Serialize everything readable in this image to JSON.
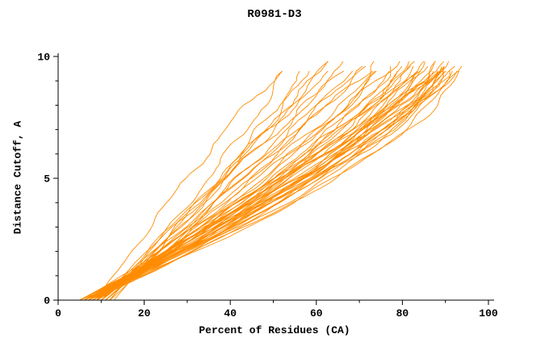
{
  "chart_data": {
    "type": "line",
    "title": "R0981-D3",
    "xlabel": "Percent of Residues (CA)",
    "ylabel": "Distance Cutoff, A",
    "xlim": [
      0,
      101
    ],
    "ylim": [
      0,
      10
    ],
    "x_ticks": [
      0,
      20,
      40,
      60,
      80,
      100
    ],
    "x_minor_ticks": [
      10,
      30,
      50,
      70,
      90
    ],
    "y_ticks": [
      0,
      5,
      10
    ],
    "y_minor_ticks": [
      1,
      2,
      3,
      4,
      6,
      7,
      8,
      9
    ],
    "grid": false,
    "legend": "none",
    "series_color": "#ff8c00",
    "axis_color": "#000000",
    "series_count": 52,
    "curve_model": "Each curve: x(y) = x_start + (x_end - x_start) * (1 - (1 - y/10)^shape), sampled from y=0 to y≈9.5-9.9; x_start = percent at cutoff 0, x_end = percent reached at cutoff 10 A",
    "series_params": [
      {
        "x_start": 5,
        "x_end": 95,
        "shape": 1.55
      },
      {
        "x_start": 6,
        "x_end": 94,
        "shape": 1.35
      },
      {
        "x_start": 5,
        "x_end": 93,
        "shape": 1.25
      },
      {
        "x_start": 6,
        "x_end": 93,
        "shape": 1.6
      },
      {
        "x_start": 7,
        "x_end": 92,
        "shape": 1.3
      },
      {
        "x_start": 6,
        "x_end": 92,
        "shape": 1.15
      },
      {
        "x_start": 5,
        "x_end": 91,
        "shape": 1.45
      },
      {
        "x_start": 7,
        "x_end": 91,
        "shape": 1.55
      },
      {
        "x_start": 6,
        "x_end": 90,
        "shape": 1.3
      },
      {
        "x_start": 8,
        "x_end": 90,
        "shape": 1.45
      },
      {
        "x_start": 5,
        "x_end": 90,
        "shape": 1.2
      },
      {
        "x_start": 7,
        "x_end": 89,
        "shape": 1.35
      },
      {
        "x_start": 6,
        "x_end": 89,
        "shape": 1.5
      },
      {
        "x_start": 8,
        "x_end": 88,
        "shape": 1.28
      },
      {
        "x_start": 6,
        "x_end": 88,
        "shape": 1.18
      },
      {
        "x_start": 7,
        "x_end": 87,
        "shape": 1.42
      },
      {
        "x_start": 5,
        "x_end": 87,
        "shape": 1.3
      },
      {
        "x_start": 8,
        "x_end": 86,
        "shape": 1.2
      },
      {
        "x_start": 6,
        "x_end": 86,
        "shape": 1.4
      },
      {
        "x_start": 7,
        "x_end": 85,
        "shape": 1.32
      },
      {
        "x_start": 9,
        "x_end": 85,
        "shape": 1.12
      },
      {
        "x_start": 6,
        "x_end": 84,
        "shape": 1.3
      },
      {
        "x_start": 8,
        "x_end": 84,
        "shape": 1.5
      },
      {
        "x_start": 7,
        "x_end": 83,
        "shape": 1.22
      },
      {
        "x_start": 6,
        "x_end": 92,
        "shape": 1.48
      },
      {
        "x_start": 5,
        "x_end": 94,
        "shape": 1.33
      },
      {
        "x_start": 7,
        "x_end": 93,
        "shape": 1.4
      },
      {
        "x_start": 8,
        "x_end": 92,
        "shape": 1.26
      },
      {
        "x_start": 6,
        "x_end": 91,
        "shape": 1.38
      },
      {
        "x_start": 7,
        "x_end": 90,
        "shape": 1.24
      },
      {
        "x_start": 8,
        "x_end": 83,
        "shape": 1.15
      },
      {
        "x_start": 9,
        "x_end": 82,
        "shape": 1.3
      },
      {
        "x_start": 7,
        "x_end": 81,
        "shape": 1.35
      },
      {
        "x_start": 8,
        "x_end": 80,
        "shape": 1.1
      },
      {
        "x_start": 9,
        "x_end": 79,
        "shape": 1.25
      },
      {
        "x_start": 10,
        "x_end": 78,
        "shape": 1.05
      },
      {
        "x_start": 8,
        "x_end": 78,
        "shape": 1.35
      },
      {
        "x_start": 9,
        "x_end": 77,
        "shape": 1.2
      },
      {
        "x_start": 10,
        "x_end": 76,
        "shape": 1.0
      },
      {
        "x_start": 9,
        "x_end": 75,
        "shape": 1.28
      },
      {
        "x_start": 10,
        "x_end": 74,
        "shape": 1.0
      },
      {
        "x_start": 11,
        "x_end": 72,
        "shape": 1.15
      },
      {
        "x_start": 9,
        "x_end": 71,
        "shape": 0.95
      },
      {
        "x_start": 12,
        "x_end": 70,
        "shape": 1.1
      },
      {
        "x_start": 10,
        "x_end": 68,
        "shape": 0.92
      },
      {
        "x_start": 11,
        "x_end": 66,
        "shape": 1.18
      },
      {
        "x_start": 12,
        "x_end": 64,
        "shape": 1.0
      },
      {
        "x_start": 10,
        "x_end": 62,
        "shape": 1.2
      },
      {
        "x_start": 13,
        "x_end": 60,
        "shape": 1.05
      },
      {
        "x_start": 11,
        "x_end": 58,
        "shape": 1.3
      },
      {
        "x_start": 9,
        "x_end": 56,
        "shape": 0.85
      },
      {
        "x_start": 12,
        "x_end": 55,
        "shape": 1.1
      }
    ]
  }
}
